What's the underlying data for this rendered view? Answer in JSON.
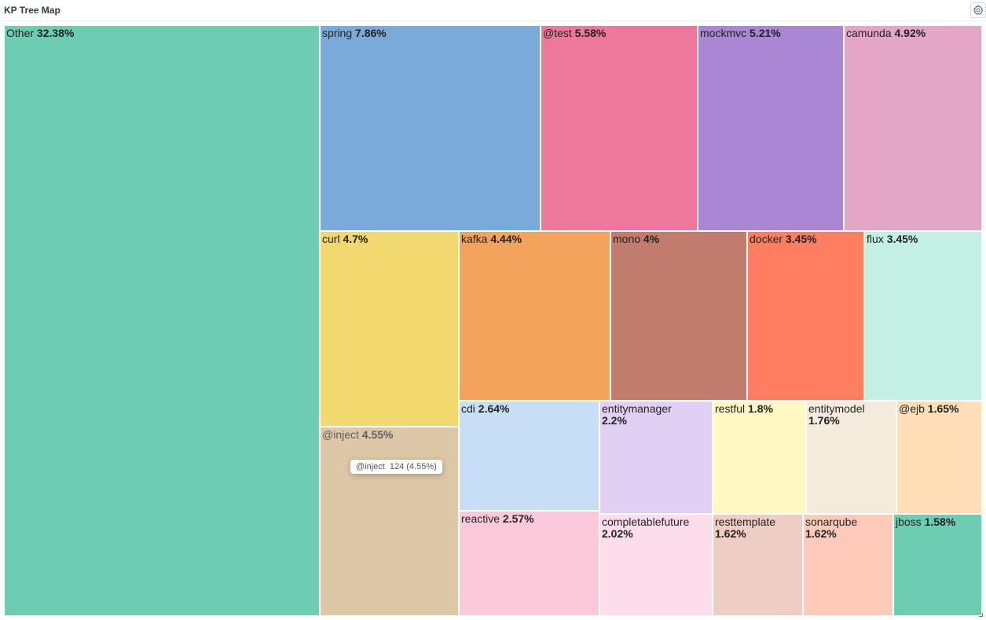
{
  "panel": {
    "title": "KP Tree Map",
    "settings_icon": "gear-icon"
  },
  "chart_data": {
    "type": "treemap",
    "unit": "%",
    "items": [
      {
        "name": "Other",
        "value": 32.38,
        "color": "#6dcdb2"
      },
      {
        "name": "spring",
        "value": 7.86,
        "color": "#7aaad9"
      },
      {
        "name": "@test",
        "value": 5.58,
        "color": "#ee789d"
      },
      {
        "name": "mockmvc",
        "value": 5.21,
        "color": "#a987d4"
      },
      {
        "name": "camunda",
        "value": 4.92,
        "color": "#e4a6c7"
      },
      {
        "name": "curl",
        "value": 4.7,
        "color": "#f1d86f"
      },
      {
        "name": "@inject",
        "value": 4.55,
        "color": "#d6bf97",
        "label_color": "#444444",
        "translucent": true
      },
      {
        "name": "kafka",
        "value": 4.44,
        "color": "#f4a35c"
      },
      {
        "name": "mono",
        "value": 4,
        "color": "#c27c6e"
      },
      {
        "name": "docker",
        "value": 3.45,
        "color": "#ff7e62"
      },
      {
        "name": "flux",
        "value": 3.45,
        "color": "#c3f0e2"
      },
      {
        "name": "cdi",
        "value": 2.64,
        "color": "#c7dff6"
      },
      {
        "name": "reactive",
        "value": 2.57,
        "color": "#fbc9da"
      },
      {
        "name": "entitymanager",
        "value": 2.2,
        "color": "#e1d0f4"
      },
      {
        "name": "completablefuture",
        "value": 2.02,
        "color": "#fddcec"
      },
      {
        "name": "restful",
        "value": 1.8,
        "color": "#fff8c2"
      },
      {
        "name": "entitymodel",
        "value": 1.76,
        "color": "#f5ebdc"
      },
      {
        "name": "@ejb",
        "value": 1.65,
        "color": "#ffdeb8"
      },
      {
        "name": "resttemplate",
        "value": 1.62,
        "color": "#eecdc5"
      },
      {
        "name": "sonarqube",
        "value": 1.62,
        "color": "#ffcab9"
      },
      {
        "name": "jboss",
        "value": 1.58,
        "color": "#6dcdb2"
      }
    ]
  },
  "tooltip": {
    "name": "@inject",
    "value": "124 (4.55%)"
  }
}
